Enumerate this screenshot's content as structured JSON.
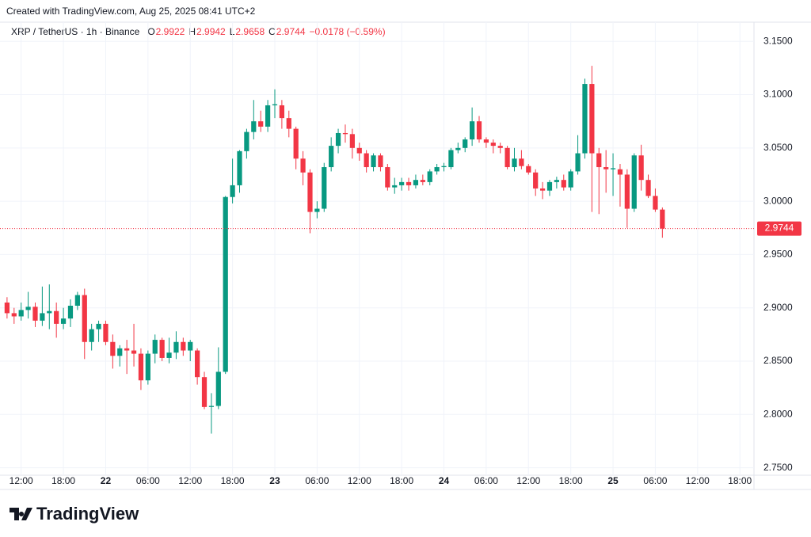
{
  "credit": "Created with TradingView.com, Aug 25, 2025 08:41 UTC+2",
  "logo": "TradingView",
  "chart_data": {
    "type": "candlestick",
    "title": "XRP / TetherUS · 1h · Binance",
    "ohlc_labels": [
      "O",
      "H",
      "L",
      "C"
    ],
    "ohlc_values": [
      2.9922,
      2.9942,
      2.9658,
      2.9744
    ],
    "change": "−0.0178 (−0.59%)",
    "up_color": "#089981",
    "down_color": "#f23645",
    "last_price": 2.9744,
    "grid": true,
    "open": [
      2.905,
      2.895,
      2.892,
      2.898,
      2.901,
      2.888,
      2.895,
      2.897,
      2.885,
      2.89,
      2.902,
      2.912,
      2.868,
      2.88,
      2.885,
      2.868,
      2.855,
      2.862,
      2.86,
      2.857,
      2.832,
      2.857,
      2.87,
      2.853,
      2.858,
      2.868,
      2.86,
      2.86,
      2.835,
      2.807,
      2.808,
      2.84,
      3.004,
      3.015,
      3.047,
      3.065,
      3.075,
      3.07,
      3.09,
      3.09,
      3.078,
      3.068,
      3.04,
      3.027,
      2.99,
      2.993,
      3.032,
      3.052,
      3.064,
      3.063,
      3.05,
      3.045,
      3.032,
      3.043,
      3.032,
      3.013,
      3.015,
      3.018,
      3.015,
      3.02,
      3.018,
      3.028,
      3.032,
      3.032,
      3.048,
      3.05,
      3.058,
      3.075,
      3.058,
      3.055,
      3.052,
      3.05,
      3.032,
      3.04,
      3.033,
      3.027,
      3.012,
      3.01,
      3.018,
      3.02,
      3.013,
      3.028,
      3.045,
      3.11,
      3.045,
      3.032,
      3.03,
      3.03,
      3.025,
      2.993,
      3.043,
      3.02,
      3.005,
      2.9922
    ],
    "high": [
      2.91,
      2.9,
      2.905,
      2.915,
      2.905,
      2.92,
      2.922,
      2.905,
      2.9,
      2.908,
      2.915,
      2.918,
      2.885,
      2.888,
      2.888,
      2.875,
      2.865,
      2.87,
      2.885,
      2.862,
      2.86,
      2.875,
      2.872,
      2.872,
      2.878,
      2.872,
      2.87,
      2.862,
      2.84,
      2.82,
      2.863,
      3.005,
      3.04,
      3.048,
      3.068,
      3.095,
      3.085,
      3.095,
      3.105,
      3.095,
      3.085,
      3.07,
      3.047,
      3.03,
      3.0,
      3.036,
      3.06,
      3.068,
      3.072,
      3.068,
      3.055,
      3.048,
      3.045,
      3.045,
      3.035,
      3.022,
      3.022,
      3.022,
      3.025,
      3.025,
      3.03,
      3.035,
      3.036,
      3.05,
      3.055,
      3.06,
      3.088,
      3.08,
      3.06,
      3.058,
      3.055,
      3.052,
      3.05,
      3.048,
      3.035,
      3.03,
      3.018,
      3.02,
      3.023,
      3.025,
      3.03,
      3.062,
      3.115,
      3.127,
      3.05,
      3.048,
      3.045,
      3.035,
      3.03,
      3.045,
      3.053,
      3.025,
      3.012,
      2.9942
    ],
    "low": [
      2.89,
      2.885,
      2.888,
      2.89,
      2.882,
      2.883,
      2.88,
      2.872,
      2.88,
      2.882,
      2.898,
      2.852,
      2.86,
      2.868,
      2.865,
      2.843,
      2.845,
      2.838,
      2.845,
      2.823,
      2.828,
      2.848,
      2.85,
      2.848,
      2.852,
      2.855,
      2.85,
      2.828,
      2.805,
      2.782,
      2.805,
      2.838,
      2.998,
      3.008,
      3.04,
      3.058,
      3.065,
      3.065,
      3.078,
      3.068,
      3.06,
      3.03,
      3.015,
      2.97,
      2.984,
      2.99,
      3.028,
      3.045,
      3.055,
      3.04,
      3.038,
      3.027,
      3.028,
      3.028,
      3.01,
      3.007,
      3.01,
      3.01,
      3.012,
      3.015,
      3.015,
      3.025,
      3.028,
      3.03,
      3.045,
      3.046,
      3.052,
      3.055,
      3.05,
      3.045,
      3.045,
      3.03,
      3.028,
      3.03,
      3.025,
      3.005,
      3.002,
      3.005,
      3.012,
      3.01,
      3.01,
      3.025,
      3.04,
      2.99,
      2.988,
      3.008,
      3.005,
      2.995,
      2.975,
      2.99,
      3.01,
      3.003,
      2.99,
      2.9658
    ],
    "close": [
      2.895,
      2.892,
      2.898,
      2.901,
      2.888,
      2.895,
      2.897,
      2.885,
      2.89,
      2.902,
      2.912,
      2.868,
      2.88,
      2.885,
      2.868,
      2.855,
      2.862,
      2.86,
      2.857,
      2.832,
      2.857,
      2.87,
      2.853,
      2.858,
      2.868,
      2.86,
      2.868,
      2.835,
      2.807,
      2.808,
      2.84,
      3.004,
      3.015,
      3.047,
      3.065,
      3.075,
      3.07,
      3.09,
      3.091,
      3.078,
      3.068,
      3.04,
      3.027,
      2.99,
      2.993,
      3.032,
      3.052,
      3.064,
      3.063,
      3.05,
      3.045,
      3.032,
      3.043,
      3.032,
      3.013,
      3.015,
      3.018,
      3.015,
      3.02,
      3.018,
      3.028,
      3.032,
      3.033,
      3.048,
      3.05,
      3.058,
      3.075,
      3.058,
      3.055,
      3.052,
      3.05,
      3.032,
      3.04,
      3.033,
      3.027,
      3.012,
      3.01,
      3.018,
      3.02,
      3.013,
      3.028,
      3.045,
      3.11,
      3.045,
      3.032,
      3.03,
      3.031,
      3.025,
      2.993,
      3.043,
      3.02,
      3.005,
      2.9922,
      2.9744
    ],
    "xlim": [
      -1,
      106
    ],
    "xticks": [
      {
        "value": 2,
        "label": "12:00"
      },
      {
        "value": 8,
        "label": "18:00"
      },
      {
        "value": 14,
        "label": "22"
      },
      {
        "value": 20,
        "label": "06:00"
      },
      {
        "value": 26,
        "label": "12:00"
      },
      {
        "value": 32,
        "label": "18:00"
      },
      {
        "value": 38,
        "label": "23"
      },
      {
        "value": 44,
        "label": "06:00"
      },
      {
        "value": 50,
        "label": "12:00"
      },
      {
        "value": 56,
        "label": "18:00"
      },
      {
        "value": 62,
        "label": "24"
      },
      {
        "value": 68,
        "label": "06:00"
      },
      {
        "value": 74,
        "label": "12:00"
      },
      {
        "value": 80,
        "label": "18:00"
      },
      {
        "value": 86,
        "label": "25"
      },
      {
        "value": 92,
        "label": "06:00"
      },
      {
        "value": 98,
        "label": "12:00"
      },
      {
        "value": 104,
        "label": "18:00"
      }
    ],
    "ylim": [
      2.743,
      3.168
    ],
    "yticks": [
      {
        "value": 2.75,
        "label": "2.7500"
      },
      {
        "value": 2.8,
        "label": "2.8000"
      },
      {
        "value": 2.85,
        "label": "2.8500"
      },
      {
        "value": 2.9,
        "label": "2.9000"
      },
      {
        "value": 2.95,
        "label": "2.9500"
      },
      {
        "value": 3.0,
        "label": "3.0000"
      },
      {
        "value": 3.05,
        "label": "3.0500"
      },
      {
        "value": 3.1,
        "label": "3.1000"
      },
      {
        "value": 3.15,
        "label": "3.1500"
      }
    ]
  }
}
